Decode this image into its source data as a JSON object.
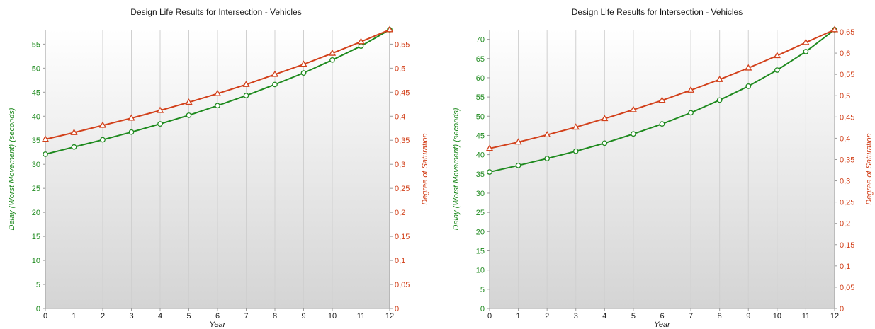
{
  "colors": {
    "delay": "#1e8a1e",
    "saturation": "#d2401a",
    "grid": "#d0d0d0",
    "axis": "#999999",
    "text": "#1a1a1a"
  },
  "chart_data": [
    {
      "type": "line",
      "title": "Design Life Results for Intersection - Vehicles",
      "xlabel": "Year",
      "ylabel": "Delay (Worst Movement) (seconds)",
      "y2label": "Degree of Saturation",
      "x": [
        0,
        1,
        2,
        3,
        4,
        5,
        6,
        7,
        8,
        9,
        10,
        11,
        12
      ],
      "xlim": [
        0,
        12
      ],
      "ylim": [
        0,
        58
      ],
      "y2lim": [
        0,
        0.58
      ],
      "yticks": [
        0,
        5,
        10,
        15,
        20,
        25,
        30,
        35,
        40,
        45,
        50,
        55
      ],
      "y2ticks": [
        0,
        0.05,
        0.1,
        0.15,
        0.2,
        0.25,
        0.3,
        0.35,
        0.4,
        0.45,
        0.5,
        0.55
      ],
      "y2tick_labels": [
        "0",
        "0,05",
        "0,1",
        "0,15",
        "0,2",
        "0,25",
        "0,3",
        "0,35",
        "0,4",
        "0,45",
        "0,5",
        "0,55"
      ],
      "grid": "vertical",
      "series": [
        {
          "axis": "left",
          "marker": "circle",
          "color": "#1e8a1e",
          "values": [
            32.1,
            33.6,
            35.1,
            36.7,
            38.4,
            40.2,
            42.2,
            44.3,
            46.6,
            49.0,
            51.7,
            54.6,
            58.0
          ]
        },
        {
          "axis": "right",
          "marker": "triangle",
          "color": "#d2401a",
          "values": [
            0.352,
            0.366,
            0.381,
            0.396,
            0.412,
            0.429,
            0.447,
            0.466,
            0.487,
            0.508,
            0.531,
            0.555,
            0.58
          ]
        }
      ]
    },
    {
      "type": "line",
      "title": "Design Life Results for Intersection - Vehicles",
      "xlabel": "Year",
      "ylabel": "Delay (Worst Movement) (seconds)",
      "y2label": "Degree of Saturation",
      "x": [
        0,
        1,
        2,
        3,
        4,
        5,
        6,
        7,
        8,
        9,
        10,
        11,
        12
      ],
      "xlim": [
        0,
        12
      ],
      "ylim": [
        0,
        72.5
      ],
      "y2lim": [
        0,
        0.655
      ],
      "yticks": [
        0,
        5,
        10,
        15,
        20,
        25,
        30,
        35,
        40,
        45,
        50,
        55,
        60,
        65,
        70
      ],
      "y2ticks": [
        0,
        0.05,
        0.1,
        0.15,
        0.2,
        0.25,
        0.3,
        0.35,
        0.4,
        0.45,
        0.5,
        0.55,
        0.6,
        0.65
      ],
      "y2tick_labels": [
        "0",
        "0,05",
        "0,1",
        "0,15",
        "0,2",
        "0,25",
        "0,3",
        "0,35",
        "0,4",
        "0,45",
        "0,5",
        "0,55",
        "0,6",
        "0,65"
      ],
      "grid": "vertical",
      "series": [
        {
          "axis": "left",
          "marker": "circle",
          "color": "#1e8a1e",
          "values": [
            35.5,
            37.2,
            39.0,
            40.9,
            43.0,
            45.4,
            48.0,
            50.9,
            54.2,
            57.8,
            62.0,
            66.8,
            72.5
          ]
        },
        {
          "axis": "right",
          "marker": "triangle",
          "color": "#d2401a",
          "values": [
            0.376,
            0.391,
            0.408,
            0.426,
            0.446,
            0.467,
            0.489,
            0.513,
            0.538,
            0.565,
            0.594,
            0.625,
            0.655
          ]
        }
      ]
    }
  ]
}
